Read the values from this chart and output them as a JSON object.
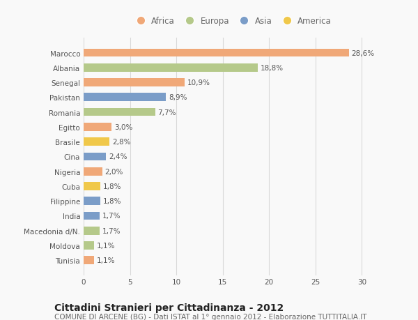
{
  "categories": [
    "Marocco",
    "Albania",
    "Senegal",
    "Pakistan",
    "Romania",
    "Egitto",
    "Brasile",
    "Cina",
    "Nigeria",
    "Cuba",
    "Filippine",
    "India",
    "Macedonia d/N.",
    "Moldova",
    "Tunisia"
  ],
  "values": [
    28.6,
    18.8,
    10.9,
    8.9,
    7.7,
    3.0,
    2.8,
    2.4,
    2.0,
    1.8,
    1.8,
    1.7,
    1.7,
    1.1,
    1.1
  ],
  "labels": [
    "28,6%",
    "18,8%",
    "10,9%",
    "8,9%",
    "7,7%",
    "3,0%",
    "2,8%",
    "2,4%",
    "2,0%",
    "1,8%",
    "1,8%",
    "1,7%",
    "1,7%",
    "1,1%",
    "1,1%"
  ],
  "continents": [
    "Africa",
    "Europa",
    "Africa",
    "Asia",
    "Europa",
    "Africa",
    "America",
    "Asia",
    "Africa",
    "America",
    "Asia",
    "Asia",
    "Europa",
    "Europa",
    "Africa"
  ],
  "continent_colors": {
    "Africa": "#F0A878",
    "Europa": "#B5C98A",
    "Asia": "#7B9DC8",
    "America": "#F0C84A"
  },
  "legend_order": [
    "Africa",
    "Europa",
    "Asia",
    "America"
  ],
  "title": "Cittadini Stranieri per Cittadinanza - 2012",
  "subtitle": "COMUNE DI ARCENE (BG) - Dati ISTAT al 1° gennaio 2012 - Elaborazione TUTTITALIA.IT",
  "xlim": [
    0,
    32
  ],
  "xticks": [
    0,
    5,
    10,
    15,
    20,
    25,
    30
  ],
  "background_color": "#f9f9f9",
  "grid_color": "#d8d8d8",
  "bar_height": 0.55,
  "title_fontsize": 10,
  "subtitle_fontsize": 7.5,
  "label_fontsize": 7.5,
  "tick_fontsize": 7.5,
  "legend_fontsize": 8.5
}
